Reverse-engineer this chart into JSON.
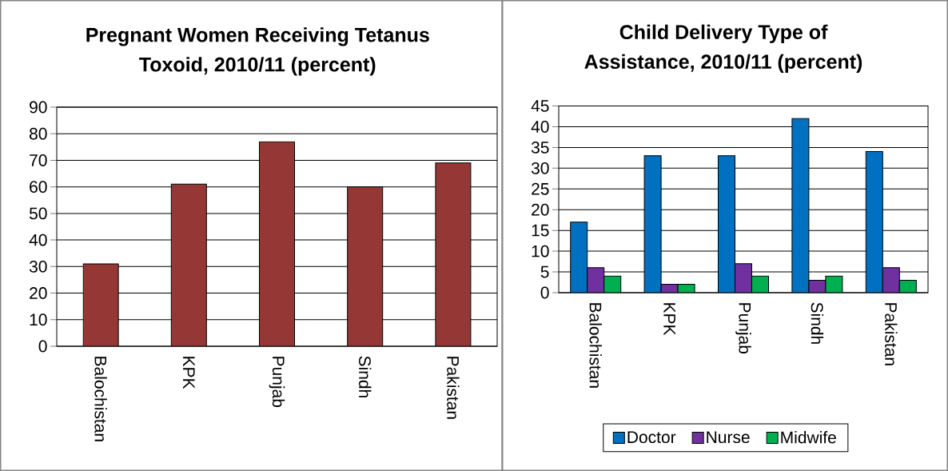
{
  "chart_data": [
    {
      "type": "bar",
      "title": "Pregnant Women Receiving Tetanus Toxoid, 2010/11 (percent)",
      "categories": [
        "Balochistan",
        "KPK",
        "Punjab",
        "Sindh",
        "Pakistan"
      ],
      "values": [
        31,
        61,
        77,
        60,
        69
      ],
      "color": "#953735",
      "ylim": [
        0,
        90
      ],
      "yticks": [
        0,
        10,
        20,
        30,
        40,
        50,
        60,
        70,
        80,
        90
      ],
      "grid": "y"
    },
    {
      "type": "bar",
      "title": "Child Delivery Type of Assistance, 2010/11 (percent)",
      "categories": [
        "Balochistan",
        "KPK",
        "Punjab",
        "Sindh",
        "Pakistan"
      ],
      "series": [
        {
          "name": "Doctor",
          "color": "#0070c0",
          "values": [
            17,
            33,
            33,
            42,
            34
          ]
        },
        {
          "name": "Nurse",
          "color": "#7030a0",
          "values": [
            6,
            2,
            7,
            3,
            6
          ]
        },
        {
          "name": "Midwife",
          "color": "#00b050",
          "values": [
            4,
            2,
            4,
            4,
            3
          ]
        }
      ],
      "ylim": [
        0,
        45
      ],
      "yticks": [
        0,
        5,
        10,
        15,
        20,
        25,
        30,
        35,
        40,
        45
      ],
      "grid": "y",
      "legend": "bottom"
    }
  ]
}
